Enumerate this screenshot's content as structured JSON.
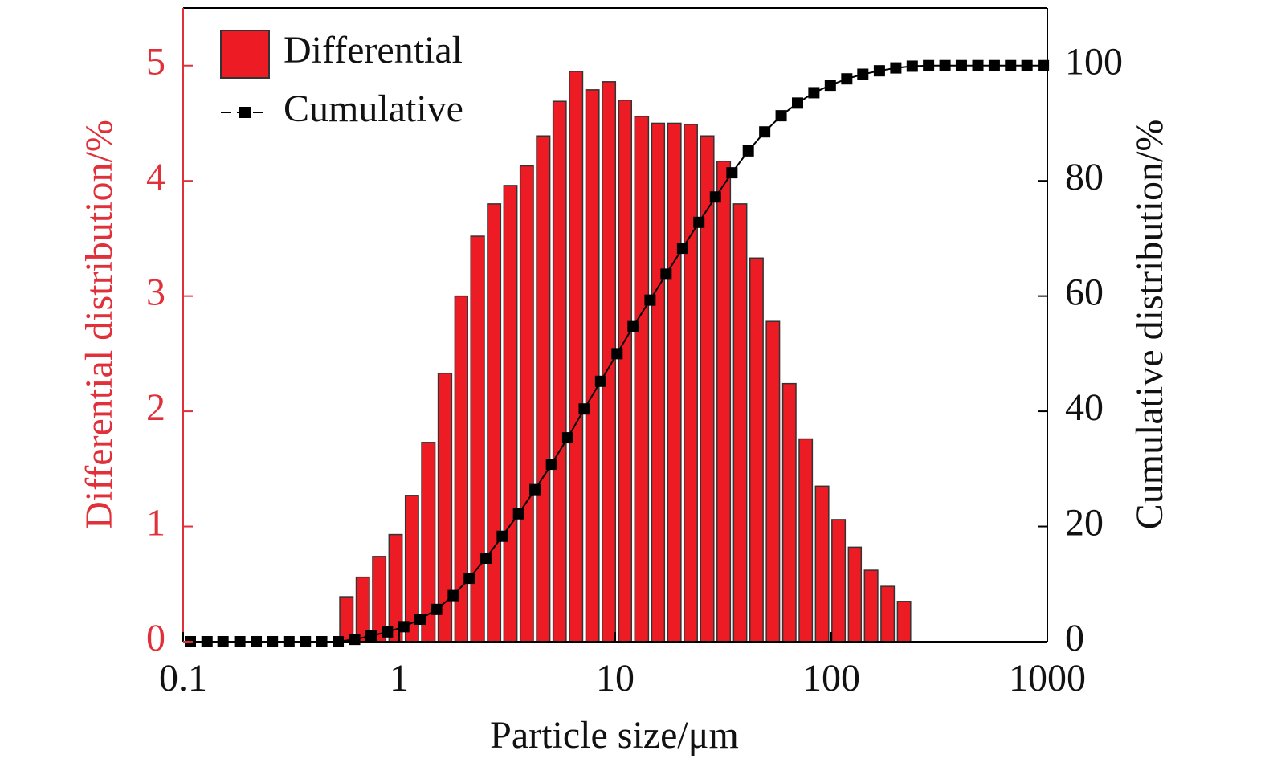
{
  "chart_data": {
    "type": "histogram",
    "xlabel": "Particle size/μm",
    "ylabel": "Differential distribution/%",
    "y2label": "Cumulative distribution/%",
    "xscale": "log",
    "xlim": [
      0.1,
      1000
    ],
    "xticks": [
      0.1,
      1,
      10,
      100,
      1000
    ],
    "ylim": [
      0,
      5.5
    ],
    "yticks": [
      0,
      1,
      2,
      3,
      4,
      5
    ],
    "y2lim": [
      0,
      110
    ],
    "y2ticks": [
      0,
      20,
      40,
      60,
      80,
      100
    ],
    "legend": "upper left",
    "bins": [
      0.522,
      0.622,
      0.741,
      0.882,
      1.05,
      1.25,
      1.49,
      1.78,
      2.11,
      2.52,
      3.0,
      3.57,
      4.25,
      5.07,
      6.03,
      7.19,
      8.56,
      10.2,
      12.1,
      14.5,
      17.2,
      20.5,
      24.4,
      29.1,
      34.7,
      41.3,
      49.2,
      58.6,
      69.8,
      83.1,
      99.0,
      118,
      140,
      167,
      199,
      237
    ],
    "series": [
      {
        "name": "Differential",
        "color": "#ed1c24",
        "values": [
          0.39,
          0.56,
          0.74,
          0.93,
          1.27,
          1.73,
          2.33,
          3.0,
          3.52,
          3.8,
          3.96,
          4.13,
          4.39,
          4.69,
          4.95,
          4.79,
          4.86,
          4.7,
          4.56,
          4.5,
          4.5,
          4.49,
          4.39,
          4.17,
          3.8,
          3.33,
          2.78,
          2.24,
          1.76,
          1.35,
          1.06,
          0.82,
          0.62,
          0.48,
          0.35
        ]
      },
      {
        "name": "Cumulative",
        "type": "line",
        "color": "#000000",
        "axis": "y2",
        "x": [
          0.108,
          0.129,
          0.153,
          0.183,
          0.218,
          0.259,
          0.309,
          0.368,
          0.438,
          0.522,
          0.622,
          0.741,
          0.882,
          1.05,
          1.25,
          1.49,
          1.78,
          2.11,
          2.52,
          3.0,
          3.57,
          4.25,
          5.07,
          6.03,
          7.19,
          8.56,
          10.2,
          12.1,
          14.5,
          17.2,
          20.5,
          24.4,
          29.1,
          34.7,
          41.3,
          49.2,
          58.6,
          69.8,
          83.1,
          99.0,
          118,
          140,
          167,
          199,
          237,
          282,
          336,
          400,
          477,
          568,
          676,
          805,
          959
        ],
        "values": [
          0,
          0,
          0,
          0,
          0,
          0,
          0,
          0,
          0,
          0,
          0.4,
          1.0,
          1.7,
          2.6,
          3.9,
          5.6,
          8.0,
          11.0,
          14.5,
          18.3,
          22.2,
          26.4,
          30.8,
          35.4,
          40.4,
          45.2,
          50.0,
          54.7,
          59.3,
          63.8,
          68.3,
          72.8,
          77.2,
          81.4,
          85.2,
          88.5,
          91.3,
          93.5,
          95.3,
          96.6,
          97.7,
          98.5,
          99.1,
          99.6,
          99.9,
          100,
          100,
          100,
          100,
          100,
          100,
          100,
          100
        ]
      }
    ]
  }
}
